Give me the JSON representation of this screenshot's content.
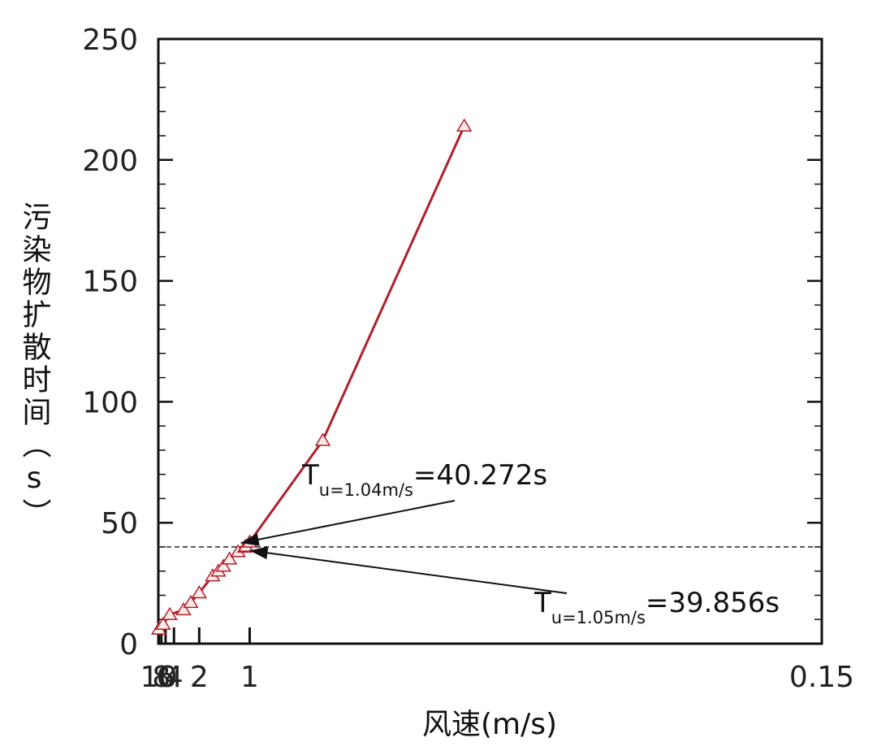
{
  "chart_data": {
    "type": "line",
    "xlabel": "风速(m/s)",
    "ylabel": "污染物扩散时间（s）",
    "x_scale": "reciprocal",
    "x_range": [
      10.5,
      0.15
    ],
    "ylim": [
      0,
      250
    ],
    "y_ticks": [
      0,
      50,
      100,
      150,
      200,
      250
    ],
    "x_ticks": [
      {
        "value": 10,
        "label": "10"
      },
      {
        "value": 8,
        "label": "8"
      },
      {
        "value": 6,
        "label": "6"
      },
      {
        "value": 4,
        "label": "4"
      },
      {
        "value": 2,
        "label": "2"
      },
      {
        "value": 1,
        "label": "1"
      },
      {
        "value": 0.15,
        "label": "0.15"
      }
    ],
    "grid": false,
    "colors": {
      "line": "#b0202a",
      "marker_fill": "#fdeaea",
      "reference": "#333333"
    },
    "series": [
      {
        "marker": "triangle",
        "points": [
          {
            "x": 10.0,
            "y": 6
          },
          {
            "x": 7.0,
            "y": 8
          },
          {
            "x": 4.8,
            "y": 12
          },
          {
            "x": 2.9,
            "y": 14
          },
          {
            "x": 2.4,
            "y": 17
          },
          {
            "x": 2.0,
            "y": 21
          },
          {
            "x": 1.58,
            "y": 28
          },
          {
            "x": 1.45,
            "y": 30
          },
          {
            "x": 1.35,
            "y": 32
          },
          {
            "x": 1.25,
            "y": 35
          },
          {
            "x": 1.13,
            "y": 38
          },
          {
            "x": 1.05,
            "y": 39.856
          },
          {
            "x": 1.04,
            "y": 40.272
          },
          {
            "x": 1.0,
            "y": 42
          },
          {
            "x": 0.58,
            "y": 84
          },
          {
            "x": 0.32,
            "y": 214
          }
        ]
      }
    ],
    "reference_line": {
      "y": 40
    },
    "annotations": [
      {
        "main": "T",
        "sub": "u=1.04m/s",
        "value_text": "=40.272s",
        "x": 1.04,
        "y": 40.272
      },
      {
        "main": "T",
        "sub": "u=1.05m/s",
        "value_text": "=39.856s",
        "x": 1.05,
        "y": 39.856
      }
    ]
  }
}
